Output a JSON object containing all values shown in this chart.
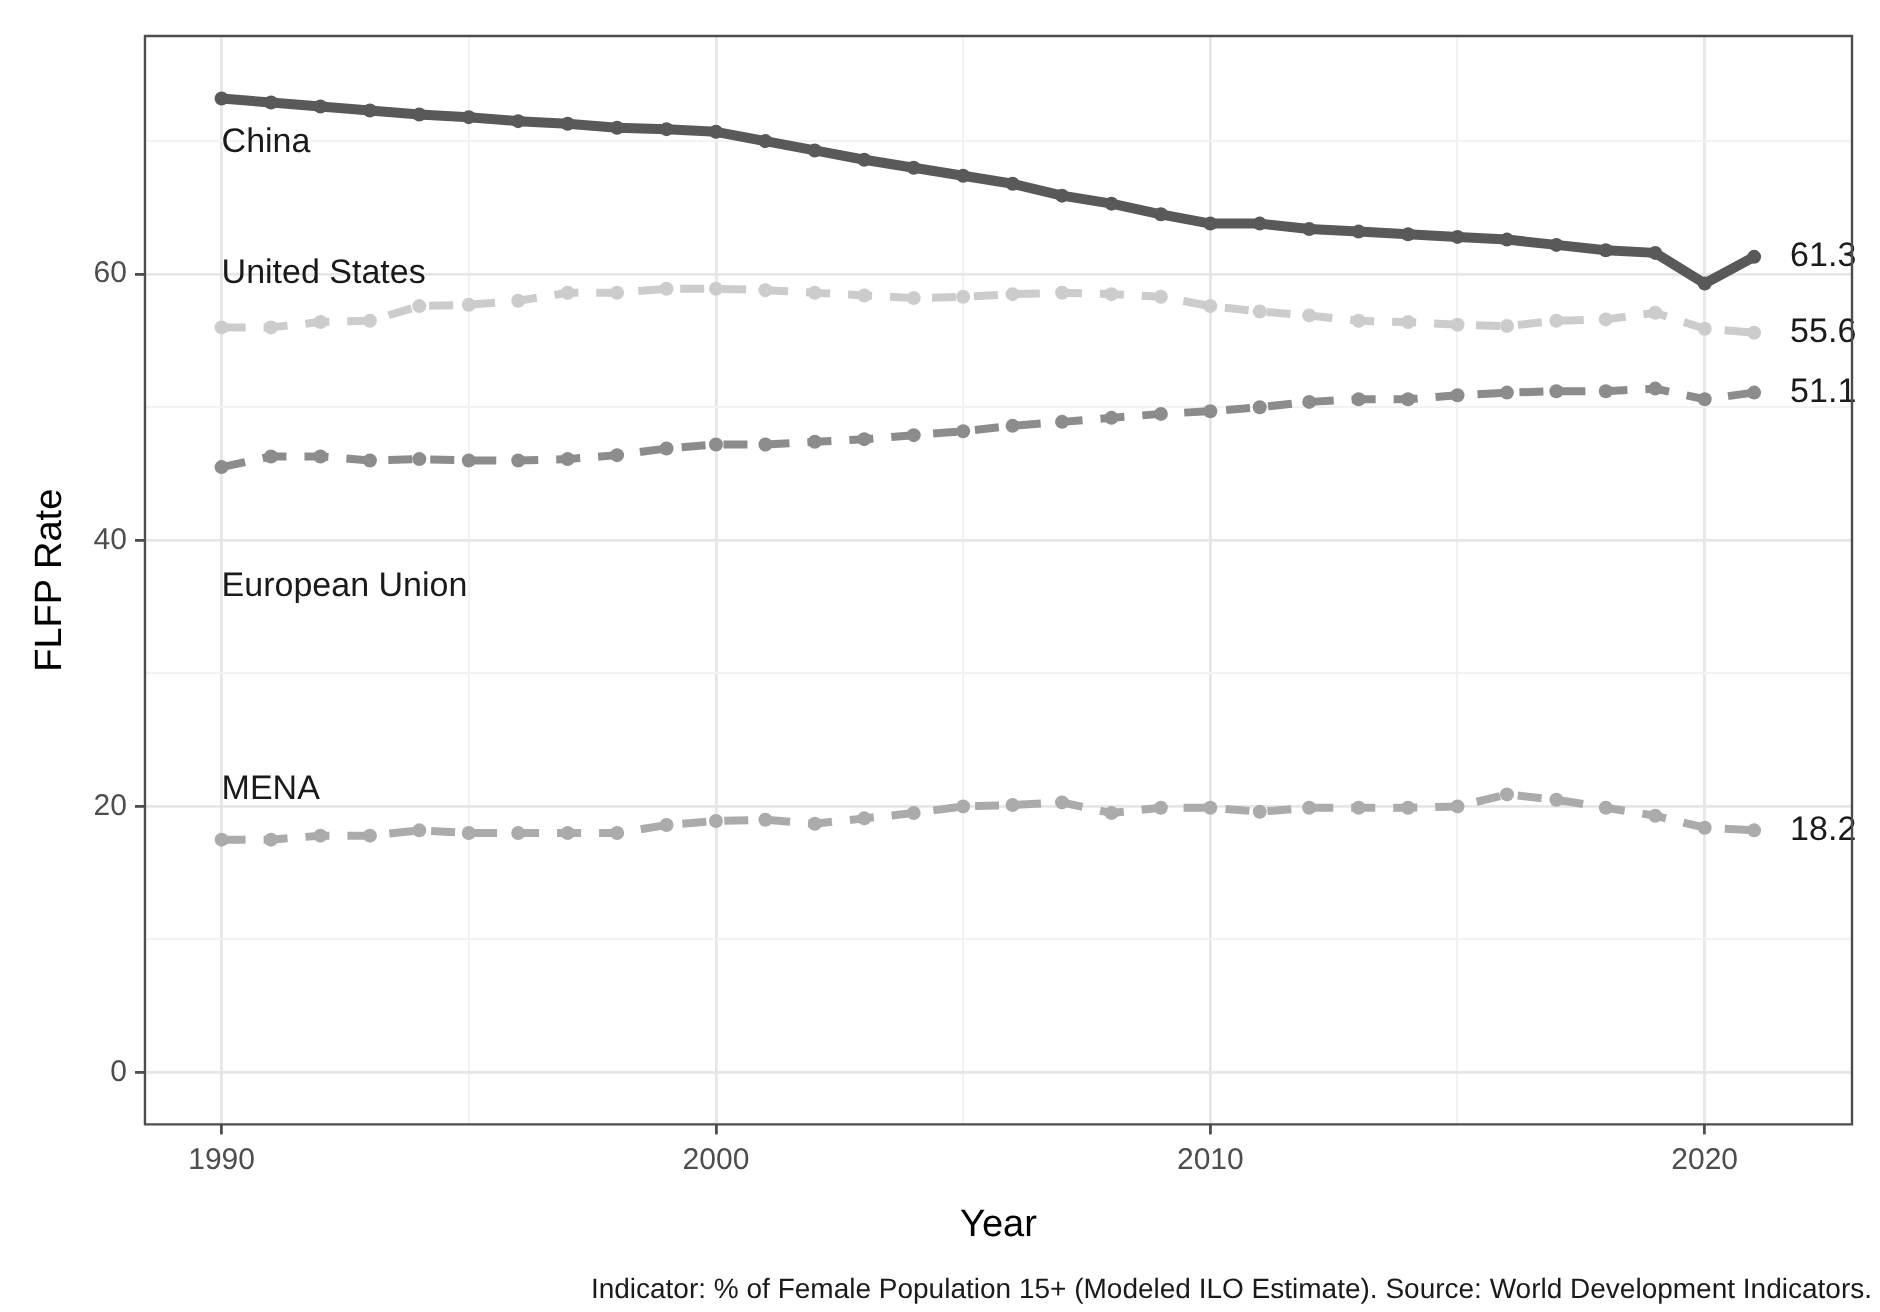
{
  "chart_data": {
    "type": "line",
    "xlabel": "Year",
    "ylabel": "FLFP Rate",
    "x": [
      1990,
      1991,
      1992,
      1993,
      1994,
      1995,
      1996,
      1997,
      1998,
      1999,
      2000,
      2001,
      2002,
      2003,
      2004,
      2005,
      2006,
      2007,
      2008,
      2009,
      2010,
      2011,
      2012,
      2013,
      2014,
      2015,
      2016,
      2017,
      2018,
      2019,
      2020,
      2021
    ],
    "xlim": [
      1988.45,
      2022.98
    ],
    "xticks": [
      {
        "value": 1990,
        "label": "1990"
      },
      {
        "value": 1995,
        "label": null
      },
      {
        "value": 2000,
        "label": "2000"
      },
      {
        "value": 2005,
        "label": null
      },
      {
        "value": 2010,
        "label": "2010"
      },
      {
        "value": 2015,
        "label": null
      },
      {
        "value": 2020,
        "label": "2020"
      }
    ],
    "ylim": [
      -3.9,
      77.9
    ],
    "yticks": [
      {
        "value": 0,
        "label": "0"
      },
      {
        "value": 10,
        "label": null
      },
      {
        "value": 20,
        "label": "20"
      },
      {
        "value": 30,
        "label": null
      },
      {
        "value": 40,
        "label": "40"
      },
      {
        "value": 50,
        "label": null
      },
      {
        "value": 60,
        "label": "60"
      },
      {
        "value": 70,
        "label": null
      }
    ],
    "grid": true,
    "legend": false,
    "marker": "circle",
    "series": [
      {
        "name": "China",
        "color": "#595959",
        "line_style": "solid",
        "values": [
          73.2,
          72.9,
          72.6,
          72.3,
          72.0,
          71.8,
          71.5,
          71.3,
          71.0,
          70.9,
          70.7,
          70.0,
          69.3,
          68.6,
          68.0,
          67.4,
          66.8,
          65.9,
          65.3,
          64.5,
          63.8,
          63.8,
          63.4,
          63.2,
          63.0,
          62.8,
          62.6,
          62.2,
          61.8,
          61.6,
          59.3,
          61.3
        ],
        "value_labels": [
          null,
          null,
          null,
          null,
          null,
          null,
          null,
          null,
          null,
          null,
          null,
          null,
          null,
          null,
          null,
          null,
          null,
          null,
          null,
          null,
          null,
          null,
          null,
          null,
          null,
          null,
          null,
          null,
          null,
          null,
          null,
          "61.3"
        ]
      },
      {
        "name": "United States",
        "color": "#cccccc",
        "line_style": "dashed",
        "values": [
          56.0,
          56.0,
          56.4,
          56.5,
          57.6,
          57.7,
          58.0,
          58.6,
          58.6,
          58.9,
          58.9,
          58.8,
          58.6,
          58.4,
          58.2,
          58.3,
          58.5,
          58.6,
          58.5,
          58.3,
          57.6,
          57.2,
          56.9,
          56.5,
          56.4,
          56.2,
          56.1,
          56.5,
          56.6,
          57.1,
          55.9,
          55.6
        ],
        "value_labels": [
          null,
          null,
          null,
          null,
          null,
          null,
          null,
          null,
          null,
          null,
          null,
          null,
          null,
          null,
          null,
          null,
          null,
          null,
          null,
          null,
          null,
          null,
          null,
          null,
          null,
          null,
          null,
          null,
          null,
          null,
          null,
          "55.6"
        ]
      },
      {
        "name": "European Union",
        "color": "#8c8c8c",
        "line_style": "dashed",
        "values": [
          45.5,
          46.3,
          46.3,
          46.0,
          46.1,
          46.0,
          46.0,
          46.1,
          46.4,
          46.9,
          47.2,
          47.2,
          47.4,
          47.6,
          47.9,
          48.2,
          48.6,
          48.9,
          49.2,
          49.5,
          49.7,
          50.0,
          50.4,
          50.6,
          50.6,
          50.9,
          51.1,
          51.2,
          51.2,
          51.4,
          50.6,
          51.1
        ],
        "value_labels": [
          null,
          null,
          null,
          null,
          null,
          null,
          null,
          null,
          null,
          null,
          null,
          null,
          null,
          null,
          null,
          null,
          null,
          null,
          null,
          null,
          null,
          null,
          null,
          null,
          null,
          null,
          null,
          null,
          null,
          null,
          null,
          "51.1"
        ]
      },
      {
        "name": "MENA",
        "color": "#ababab",
        "line_style": "dashed",
        "values": [
          17.5,
          17.5,
          17.8,
          17.8,
          18.2,
          18.0,
          18.0,
          18.0,
          18.0,
          18.6,
          18.9,
          19.0,
          18.7,
          19.1,
          19.5,
          20.0,
          20.1,
          20.3,
          19.5,
          19.9,
          19.9,
          19.6,
          19.9,
          19.9,
          19.9,
          20.0,
          20.9,
          20.5,
          19.9,
          19.3,
          18.4,
          18.2
        ],
        "value_labels": [
          null,
          null,
          null,
          null,
          null,
          null,
          null,
          null,
          null,
          null,
          null,
          null,
          null,
          null,
          null,
          null,
          null,
          null,
          null,
          null,
          null,
          null,
          null,
          null,
          null,
          null,
          null,
          null,
          null,
          null,
          null,
          "18.2"
        ]
      }
    ],
    "annotations": [
      "Indicator: % of Female Population 15+ (Modeled ILO Estimate). Source: World Development Indicators."
    ]
  }
}
